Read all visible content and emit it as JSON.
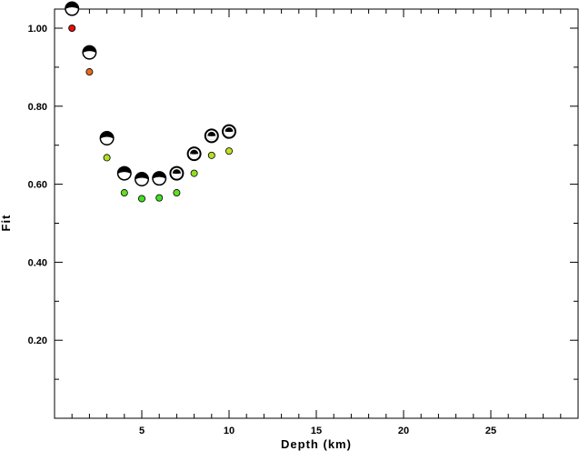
{
  "chart_data": {
    "type": "scatter",
    "title": "",
    "xlabel": "Depth (km)",
    "ylabel": "Fit",
    "xlim": [
      0,
      30
    ],
    "ylim": [
      0,
      1.0
    ],
    "x_ticks": [
      5,
      10,
      15,
      20,
      25
    ],
    "x_tick_labels": [
      "5",
      "10",
      "15",
      "20",
      "25"
    ],
    "y_ticks": [
      0.2,
      0.4,
      0.6,
      0.8,
      1.0
    ],
    "y_tick_labels": [
      "0.20",
      "0.40",
      "0.60",
      "0.80",
      "1.00"
    ],
    "grid": false,
    "legend": "none",
    "points": [
      {
        "x": 1,
        "y": 1.0,
        "color": "#e01010"
      },
      {
        "x": 2,
        "y": 0.888,
        "color": "#e86a1a"
      },
      {
        "x": 3,
        "y": 0.668,
        "color": "#b0e020"
      },
      {
        "x": 4,
        "y": 0.578,
        "color": "#60e020"
      },
      {
        "x": 5,
        "y": 0.563,
        "color": "#40e020"
      },
      {
        "x": 6,
        "y": 0.565,
        "color": "#40e020"
      },
      {
        "x": 7,
        "y": 0.578,
        "color": "#60e020"
      },
      {
        "x": 8,
        "y": 0.628,
        "color": "#90e020"
      },
      {
        "x": 9,
        "y": 0.674,
        "color": "#b0e020"
      },
      {
        "x": 10,
        "y": 0.685,
        "color": "#c0e020"
      }
    ],
    "mechanisms": [
      {
        "x": 1,
        "y": 1.05
      },
      {
        "x": 2,
        "y": 0.938
      },
      {
        "x": 3,
        "y": 0.718
      },
      {
        "x": 4,
        "y": 0.628
      },
      {
        "x": 5,
        "y": 0.613
      },
      {
        "x": 6,
        "y": 0.615
      },
      {
        "x": 7,
        "y": 0.628
      },
      {
        "x": 8,
        "y": 0.678
      },
      {
        "x": 9,
        "y": 0.724
      },
      {
        "x": 10,
        "y": 0.735
      }
    ]
  }
}
